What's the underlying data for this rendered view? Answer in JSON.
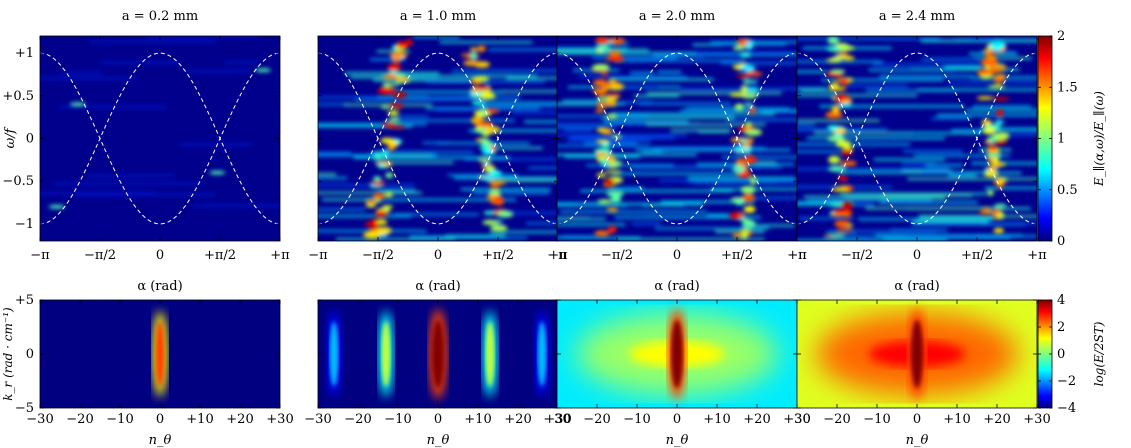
{
  "chart_data": [
    {
      "type": "heatmap",
      "title": "a = 0.2 mm",
      "xlabel": "α (rad)",
      "ylabel": "ω/f",
      "xlim": [
        -3.14159,
        3.14159
      ],
      "ylim": [
        -1.2,
        1.2
      ],
      "xtick_labels": [
        "−π",
        "−π/2",
        "0",
        "+π/2",
        "+π"
      ],
      "ytick_labels": [
        "−1",
        "−0.5",
        "0",
        "+0.5",
        "+1"
      ],
      "ytick_values": [
        -1,
        -0.5,
        0,
        0.5,
        1
      ],
      "intensity": "low",
      "hotspots": [
        [
          -2.15,
          0.4
        ],
        [
          1.5,
          -0.4
        ],
        [
          -2.7,
          -0.8
        ],
        [
          2.7,
          0.8
        ]
      ],
      "curves": [
        "cos(α)",
        "−cos(α)"
      ]
    },
    {
      "type": "heatmap",
      "title": "a = 1.0 mm",
      "xlabel": "α (rad)",
      "xlim": [
        -3.14159,
        3.14159
      ],
      "ylim": [
        -1.2,
        1.2
      ],
      "xtick_labels": [
        "−π",
        "−π/2",
        "0",
        "+π/2",
        "+π"
      ],
      "intensity": "high",
      "ridge_alpha": [
        -1.3,
        1.3
      ],
      "curves": [
        "cos(α)",
        "−cos(α)"
      ]
    },
    {
      "type": "heatmap",
      "title": "a = 2.0 mm",
      "xlabel": "α (rad)",
      "xlim": [
        -3.14159,
        3.14159
      ],
      "ylim": [
        -1.2,
        1.2
      ],
      "xtick_labels": [
        "−π",
        "−π/2",
        "0",
        "+π/2",
        "+π"
      ],
      "intensity": "medium",
      "ridge_alpha": [
        -1.8,
        1.8
      ],
      "curves": [
        "cos(α)",
        "−cos(α)"
      ]
    },
    {
      "type": "heatmap",
      "title": "a = 2.4 mm",
      "xlabel": "α (rad)",
      "xlim": [
        -3.14159,
        3.14159
      ],
      "ylim": [
        -1.2,
        1.2
      ],
      "xtick_labels": [
        "−π",
        "−π/2",
        "0",
        "+π/2",
        "+π"
      ],
      "intensity": "medium",
      "ridge_alpha": [
        -2.0,
        2.0
      ],
      "curves": [
        "cos(α)",
        "−cos(α)"
      ]
    },
    {
      "type": "heatmap",
      "xlabel": "n_θ",
      "ylabel": "k_r (rad · cm⁻¹)",
      "xlim": [
        -30,
        30
      ],
      "ylim": [
        -5,
        5
      ],
      "xtick_labels": [
        "−30",
        "−20",
        "−10",
        "0",
        "+10",
        "+20",
        "+30"
      ],
      "xtick_values": [
        -30,
        -20,
        -10,
        0,
        10,
        20,
        30
      ],
      "ytick_labels": [
        "−5",
        "0",
        "+5"
      ],
      "ytick_values": [
        -5,
        0,
        5
      ],
      "background_level": -4,
      "peaks": [
        {
          "n": 0,
          "level": 2.5
        }
      ]
    },
    {
      "type": "heatmap",
      "xlabel": "n_θ",
      "xlim": [
        -30,
        30
      ],
      "ylim": [
        -5,
        5
      ],
      "xtick_labels": [
        "−30",
        "−20",
        "−10",
        "0",
        "+10",
        "+20",
        "+30"
      ],
      "xtick_values": [
        -30,
        -20,
        -10,
        0,
        10,
        20,
        30
      ],
      "background_level": -4,
      "peaks": [
        {
          "n": 0,
          "level": 4.0
        },
        {
          "n": -13,
          "level": 0.5
        },
        {
          "n": 13,
          "level": 0.5
        },
        {
          "n": -26,
          "level": -1.5
        },
        {
          "n": 26,
          "level": -1.5
        }
      ]
    },
    {
      "type": "heatmap",
      "xlabel": "n_θ",
      "xlim": [
        -30,
        30
      ],
      "ylim": [
        -5,
        5
      ],
      "xtick_labels": [
        "−30",
        "−20",
        "−10",
        "0",
        "+10",
        "+20",
        "+30"
      ],
      "xtick_values": [
        -30,
        -20,
        -10,
        0,
        10,
        20,
        30
      ],
      "background_level": -1,
      "peaks": [
        {
          "n": 0,
          "level": 4.0
        }
      ]
    },
    {
      "type": "heatmap",
      "xlabel": "n_θ",
      "xlim": [
        -30,
        30
      ],
      "ylim": [
        -5,
        5
      ],
      "xtick_labels": [
        "−30",
        "−20",
        "−10",
        "0",
        "+10",
        "+20",
        "+30"
      ],
      "xtick_values": [
        -30,
        -20,
        -10,
        0,
        10,
        20,
        30
      ],
      "background_level": 1,
      "peaks": [
        {
          "n": 0,
          "level": 4.0
        }
      ]
    }
  ],
  "colorbars": [
    {
      "label": "E_∥(α,ω)/E_∥(ω)",
      "range": [
        0,
        2
      ],
      "tick_labels": [
        "0",
        "0.5",
        "1",
        "1.5",
        "2"
      ],
      "tick_values": [
        0,
        0.5,
        1,
        1.5,
        2
      ],
      "colormap": "jet"
    },
    {
      "label": "log(E/2ST)",
      "range": [
        -4,
        4
      ],
      "tick_labels": [
        "−4",
        "−2",
        "0",
        "2",
        "4"
      ],
      "tick_values": [
        -4,
        -2,
        0,
        2,
        4
      ],
      "colormap": "jet"
    }
  ]
}
